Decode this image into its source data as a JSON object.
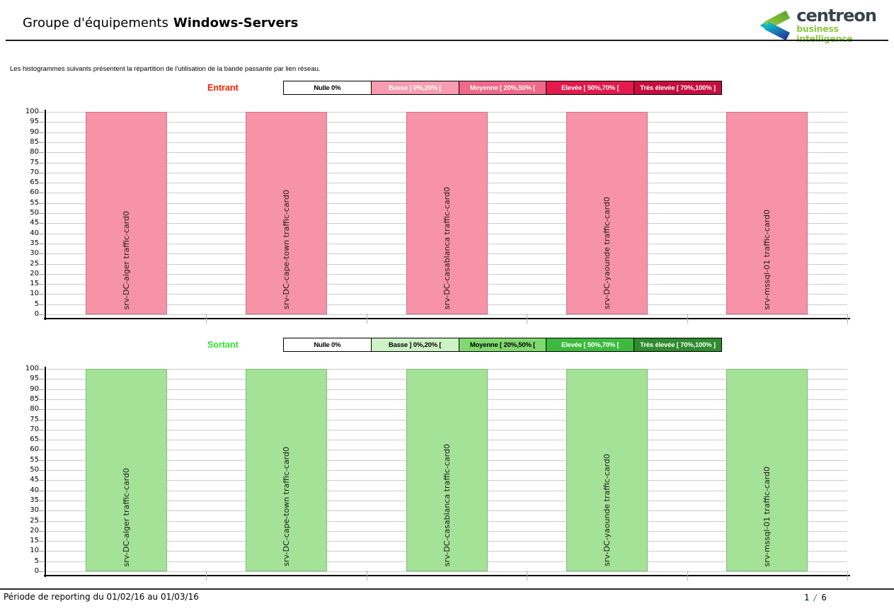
{
  "header": {
    "title_prefix": "Groupe d'équipements",
    "title_name": "Windows-Servers"
  },
  "logo": {
    "name": "centreon",
    "subtitle": "business intelligence",
    "wordmark_color": "#37424A",
    "subtitle_color": "#8DC63F"
  },
  "intro": "Les histogrammes suivants présentent la répartition de l'utilisation de la bande passante par lien réseau.",
  "chart_data": [
    {
      "type": "bar",
      "title": "Entrant",
      "title_color": "#FF1F00",
      "categories": [
        "srv-DC-alger traffic-card0",
        "srv-DC-cape-town traffic-card0",
        "srv-DC-casablanca traffic-card0",
        "srv-DC-yaounde traffic-card0",
        "srv-mssql-01 traffic-card0"
      ],
      "values": [
        100,
        100,
        100,
        100,
        100
      ],
      "ylim": [
        0,
        100
      ],
      "ytick_step": 5,
      "grid": true,
      "legend_position": "top",
      "bar_fill": "#F793A6",
      "bar_border": "#C5768B",
      "bar_label_color": "#1a1a1a",
      "legend": [
        {
          "text": "Nulle 0%",
          "bg": "#FFFFFF",
          "fg": "#000000"
        },
        {
          "text": "Basse ] 0%,20% [",
          "bg": "#F79CB1",
          "fg": "#FFFFFF"
        },
        {
          "text": "Moyenne [ 20%,50% [",
          "bg": "#F0688A",
          "fg": "#FFFFFF"
        },
        {
          "text": "Elevée [ 50%,70% [",
          "bg": "#E31A4C",
          "fg": "#FFFFFF"
        },
        {
          "text": "Très élevée [ 70%,100% ]",
          "bg": "#C60E3E",
          "fg": "#FFFFFF"
        }
      ]
    },
    {
      "type": "bar",
      "title": "Sortant",
      "title_color": "#2EE52E",
      "categories": [
        "srv-DC-alger traffic-card0",
        "srv-DC-cape-town traffic-card0",
        "srv-DC-casablanca traffic-card0",
        "srv-DC-yaounde traffic-card0",
        "srv-mssql-01 traffic-card0"
      ],
      "values": [
        100,
        100,
        100,
        100,
        100
      ],
      "ylim": [
        0,
        100
      ],
      "ytick_step": 5,
      "grid": true,
      "legend_position": "top",
      "bar_fill": "#A3E297",
      "bar_border": "#7FBE74",
      "bar_label_color": "#1a1a1a",
      "legend": [
        {
          "text": "Nulle 0%",
          "bg": "#FFFFFF",
          "fg": "#000000"
        },
        {
          "text": "Basse ] 0%,20% [",
          "bg": "#CDF2C5",
          "fg": "#000000"
        },
        {
          "text": "Moyenne [ 20%,50% [",
          "bg": "#7FD96F",
          "fg": "#000000"
        },
        {
          "text": "Elevée [ 50%,70% [",
          "bg": "#3DBA3D",
          "fg": "#FFFFFF"
        },
        {
          "text": "Très élevée [ 70%,100% ]",
          "bg": "#2E8B2E",
          "fg": "#FFFFFF"
        }
      ]
    }
  ],
  "footer": {
    "period": "Période de reporting du 01/02/16 au 01/03/16",
    "page_current": "1",
    "page_separator": "/",
    "page_total": "6"
  }
}
